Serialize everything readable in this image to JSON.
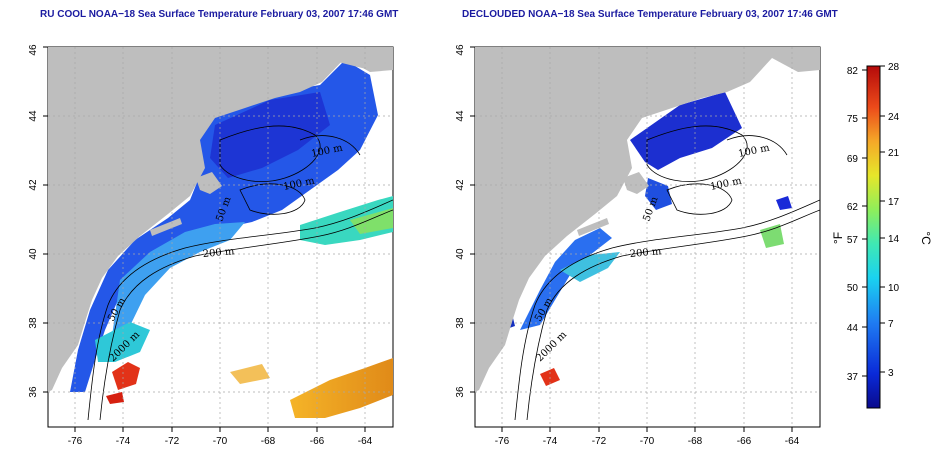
{
  "titles": {
    "left": "RU COOL NOAA−18 Sea Surface Temperature February 03, 2007 17:46 GMT",
    "right": "DECLOUDED NOAA−18 Sea Surface Temperature February 03, 2007 17:46 GMT"
  },
  "axes": {
    "lon_ticks": [
      "-76",
      "-74",
      "-72",
      "-70",
      "-68",
      "-66",
      "-64"
    ],
    "lat_ticks": [
      "36",
      "38",
      "40",
      "42",
      "44",
      "46"
    ]
  },
  "contour_labels": {
    "left": [
      "100 m",
      "100 m",
      "50 m",
      "200 m",
      "50 m",
      "2000 m"
    ],
    "right": [
      "100 m",
      "100 m",
      "50 m",
      "200 m",
      "50 m",
      "2000 m"
    ]
  },
  "colorbar": {
    "f_unit": "°F",
    "c_unit": "°C",
    "f_ticks": [
      "82",
      "75",
      "69",
      "62",
      "57",
      "50",
      "44",
      "37"
    ],
    "c_ticks": [
      "28",
      "24",
      "21",
      "17",
      "14",
      "10",
      "7",
      "3"
    ]
  },
  "colors": {
    "land": "#bebebe",
    "grid": "#a8a8a8",
    "title": "#1a1aa0",
    "cold": "#0a1a9a",
    "warm": "#c81400"
  }
}
